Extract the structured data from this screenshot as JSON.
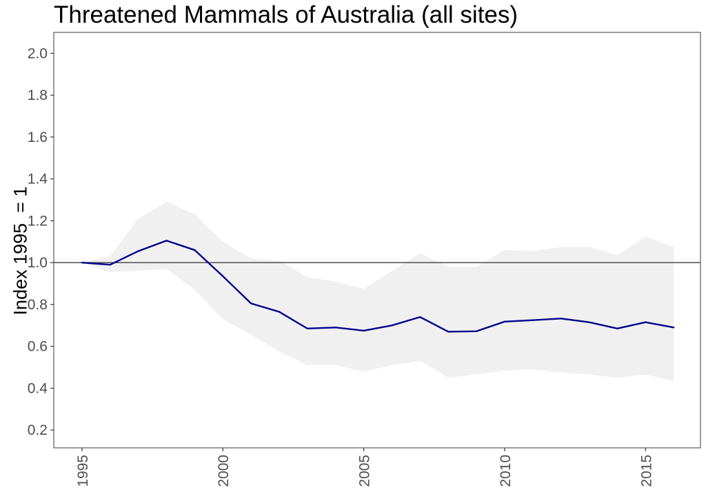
{
  "chart_data": {
    "type": "line",
    "title": "Threatened Mammals of Australia (all sites)",
    "xlabel": "",
    "ylabel": "Index 1995  = 1",
    "xlim": [
      1994,
      2016.95
    ],
    "ylim": [
      0.115,
      2.1
    ],
    "xticks": [
      1995,
      2000,
      2005,
      2010,
      2015
    ],
    "yticks": [
      0.2,
      0.4,
      0.6,
      0.8,
      1.0,
      1.2,
      1.4,
      1.6,
      1.8,
      2.0
    ],
    "ytick_labels": [
      "0.2",
      "0.4",
      "0.6",
      "0.8",
      "1.0",
      "1.2",
      "1.4",
      "1.6",
      "1.8",
      "2.0"
    ],
    "reference_line": 1.0,
    "grid": false,
    "x": [
      1995,
      1996,
      1997,
      1998,
      1999,
      2000,
      2001,
      2002,
      2003,
      2004,
      2005,
      2006,
      2007,
      2008,
      2009,
      2010,
      2011,
      2012,
      2013,
      2014,
      2015,
      2016
    ],
    "series": [
      {
        "values": [
          1.0,
          0.99,
          1.055,
          1.105,
          1.06,
          0.935,
          0.805,
          0.765,
          0.685,
          0.69,
          0.675,
          0.7,
          0.74,
          0.67,
          0.672,
          0.718,
          0.725,
          0.733,
          0.715,
          0.685,
          0.715,
          0.69
        ],
        "lower": [
          1.0,
          0.955,
          0.96,
          0.97,
          0.87,
          0.73,
          0.655,
          0.575,
          0.51,
          0.51,
          0.48,
          0.51,
          0.53,
          0.45,
          0.465,
          0.485,
          0.49,
          0.475,
          0.465,
          0.45,
          0.465,
          0.435
        ],
        "upper": [
          1.0,
          1.03,
          1.21,
          1.29,
          1.23,
          1.1,
          1.02,
          1.01,
          0.93,
          0.91,
          0.875,
          0.96,
          1.045,
          0.98,
          0.98,
          1.06,
          1.055,
          1.075,
          1.075,
          1.035,
          1.125,
          1.075
        ]
      }
    ],
    "colors": {
      "line": "#00008B",
      "ribbon": "#F0F0F0",
      "reference": "#595959",
      "border": "#595959"
    }
  }
}
